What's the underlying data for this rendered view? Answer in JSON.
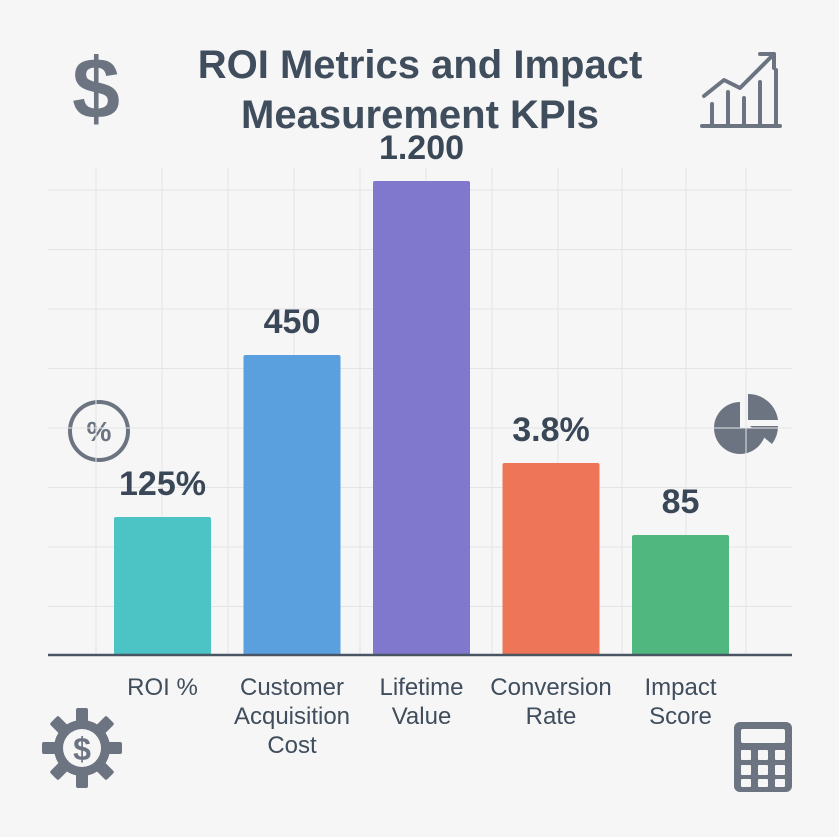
{
  "title_lines": [
    "ROI Metrics and Impact",
    "Measurement KPIs"
  ],
  "icons": {
    "dollar": "dollar-icon",
    "growth": "growth-chart-icon",
    "percent": "percent-icon",
    "pie": "pie-chart-icon",
    "gear": "dollar-gear-icon",
    "calculator": "calculator-icon"
  },
  "icon_text": {
    "dollar": "$",
    "percent": "%",
    "gear": "$"
  },
  "colors": {
    "text": "#3f4d5c",
    "grid": "#e4e4e8",
    "axis": "#4a5563",
    "icon": "#6b7480"
  },
  "chart_data": {
    "type": "bar",
    "title": "ROI Metrics and Impact Measurement KPIs",
    "categories": [
      [
        "ROI %"
      ],
      [
        "Customer",
        "Acquisition",
        "Cost"
      ],
      [
        "Lifetime",
        "Value"
      ],
      [
        "Conversion",
        "Rate"
      ],
      [
        "Impact",
        "Score"
      ]
    ],
    "values": [
      125,
      450,
      1200,
      3.8,
      85
    ],
    "display_heights": [
      115,
      250,
      395,
      160,
      100
    ],
    "display_scale_max": 400,
    "data_labels": [
      "125%",
      "450",
      "1.200",
      "3.8%",
      "85"
    ],
    "colors": [
      "#4cc3c4",
      "#5a9fde",
      "#7f78cc",
      "#ee7558",
      "#50b87f"
    ],
    "xlabel": "",
    "ylabel": "",
    "grid": true,
    "legend": "none"
  }
}
